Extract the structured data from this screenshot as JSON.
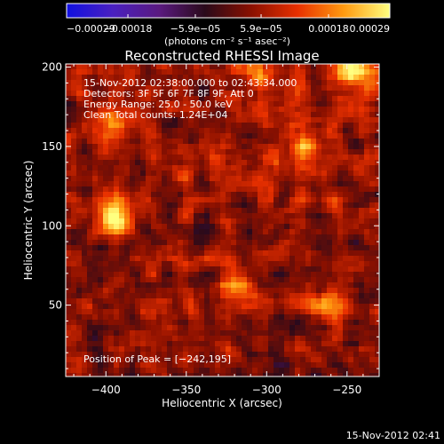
{
  "chart_data": {
    "type": "heatmap",
    "title": "Reconstructed RHESSI Image",
    "xlabel": "Heliocentric X (arcsec)",
    "ylabel": "Heliocentric Y (arcsec)",
    "xlim": [
      -425,
      -230
    ],
    "ylim": [
      5,
      202
    ],
    "x_ticks": [
      -400,
      -350,
      -300,
      -250
    ],
    "x_tick_labels": [
      "−400",
      "−350",
      "−300",
      "−250"
    ],
    "y_ticks": [
      50,
      100,
      150,
      200
    ],
    "y_tick_labels": [
      "50",
      "100",
      "150",
      "200"
    ],
    "colorbar": {
      "range": [
        -0.00029,
        0.00029
      ],
      "ticks": [
        -0.00029,
        -0.00018,
        -5.9e-05,
        5.9e-05,
        0.00018,
        0.00029
      ],
      "tick_labels": [
        "−0.00029",
        "−0.00018",
        "−5.9e−05",
        "5.9e−05",
        "0.00018",
        "0.00029"
      ],
      "units_label": "(photons cm⁻² s⁻¹ asec⁻²)",
      "colors": [
        "#1010e0",
        "#4a20c0",
        "#5a1a80",
        "#2a0a1a",
        "#8a1000",
        "#e83000",
        "#ff9a10",
        "#ffff80"
      ]
    },
    "sources": [
      {
        "x": -397,
        "y": 105,
        "intensity": 1.0
      },
      {
        "x": -244,
        "y": 196,
        "intensity": 1.0
      },
      {
        "x": -262,
        "y": 48,
        "intensity": 0.8
      },
      {
        "x": -318,
        "y": 62,
        "intensity": 0.75
      },
      {
        "x": -275,
        "y": 152,
        "intensity": 0.7
      },
      {
        "x": -392,
        "y": 168,
        "intensity": 0.6
      },
      {
        "x": -305,
        "y": 192,
        "intensity": 0.65
      }
    ],
    "annotations": {
      "time_range": "15-Nov-2012 02:38:00.000 to 02:43:34.000",
      "detectors": "Detectors: 3F 5F 6F 7F 8F 9F, Att 0",
      "energy_range": "Energy Range: 25.0 - 50.0 keV",
      "method_counts": "Clean     Total counts: 1.24E+04",
      "peak_position": "Position of Peak = [−242,195]"
    }
  },
  "footer": {
    "timestamp": "15-Nov-2012 02:41"
  }
}
